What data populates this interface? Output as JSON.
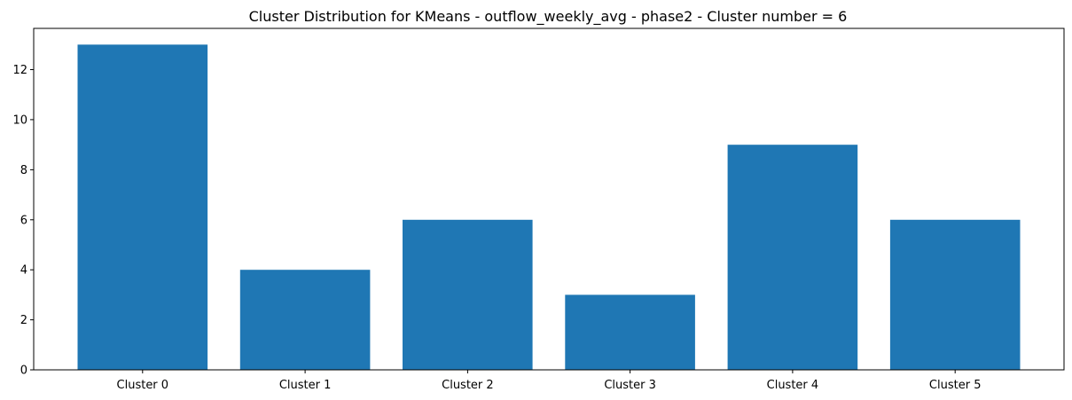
{
  "chart_data": {
    "type": "bar",
    "title": "Cluster Distribution for KMeans - outflow_weekly_avg - phase2 - Cluster number = 6",
    "xlabel": "",
    "ylabel": "",
    "categories": [
      "Cluster 0",
      "Cluster 1",
      "Cluster 2",
      "Cluster 3",
      "Cluster 4",
      "Cluster 5"
    ],
    "values": [
      13,
      4,
      6,
      3,
      9,
      6
    ],
    "ylim": [
      0,
      13.65
    ],
    "yticks": [
      0,
      2,
      4,
      6,
      8,
      10,
      12
    ],
    "grid": false,
    "bar_color": "#1f77b4"
  }
}
